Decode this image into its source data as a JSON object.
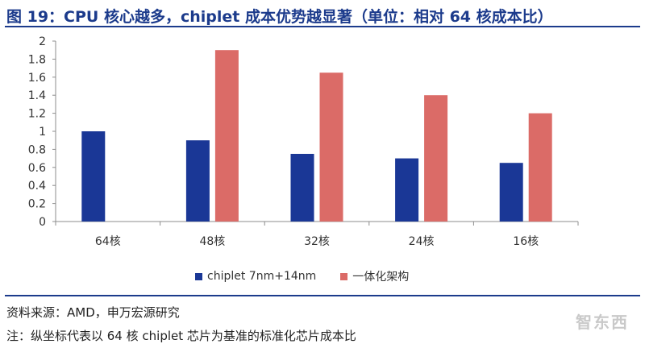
{
  "header": {
    "title": "图 19：CPU 核心越多，chiplet 成本优势越显著（单位：相对 64 核成本比）"
  },
  "footer": {
    "source": "资料来源：AMD，申万宏源研究",
    "note": "注：纵坐标代表以 64 核 chiplet 芯片为基准的标准化芯片成本比",
    "watermark": "智东西"
  },
  "chart_data": {
    "type": "bar",
    "categories": [
      "64核",
      "48核",
      "32核",
      "24核",
      "16核"
    ],
    "series": [
      {
        "name": "chiplet 7nm+14nm",
        "color": "#1a3796",
        "values": [
          1.0,
          0.9,
          0.75,
          0.7,
          0.65
        ]
      },
      {
        "name": "一体化架构",
        "color": "#db6b67",
        "values": [
          null,
          1.9,
          1.65,
          1.4,
          1.2
        ]
      }
    ],
    "ylim": [
      0,
      2
    ],
    "yticks": [
      "0",
      "0.2",
      "0.4",
      "0.6",
      "0.8",
      "1",
      "1.2",
      "1.4",
      "1.6",
      "1.8",
      "2"
    ],
    "grid": false,
    "legend": "bottom"
  }
}
